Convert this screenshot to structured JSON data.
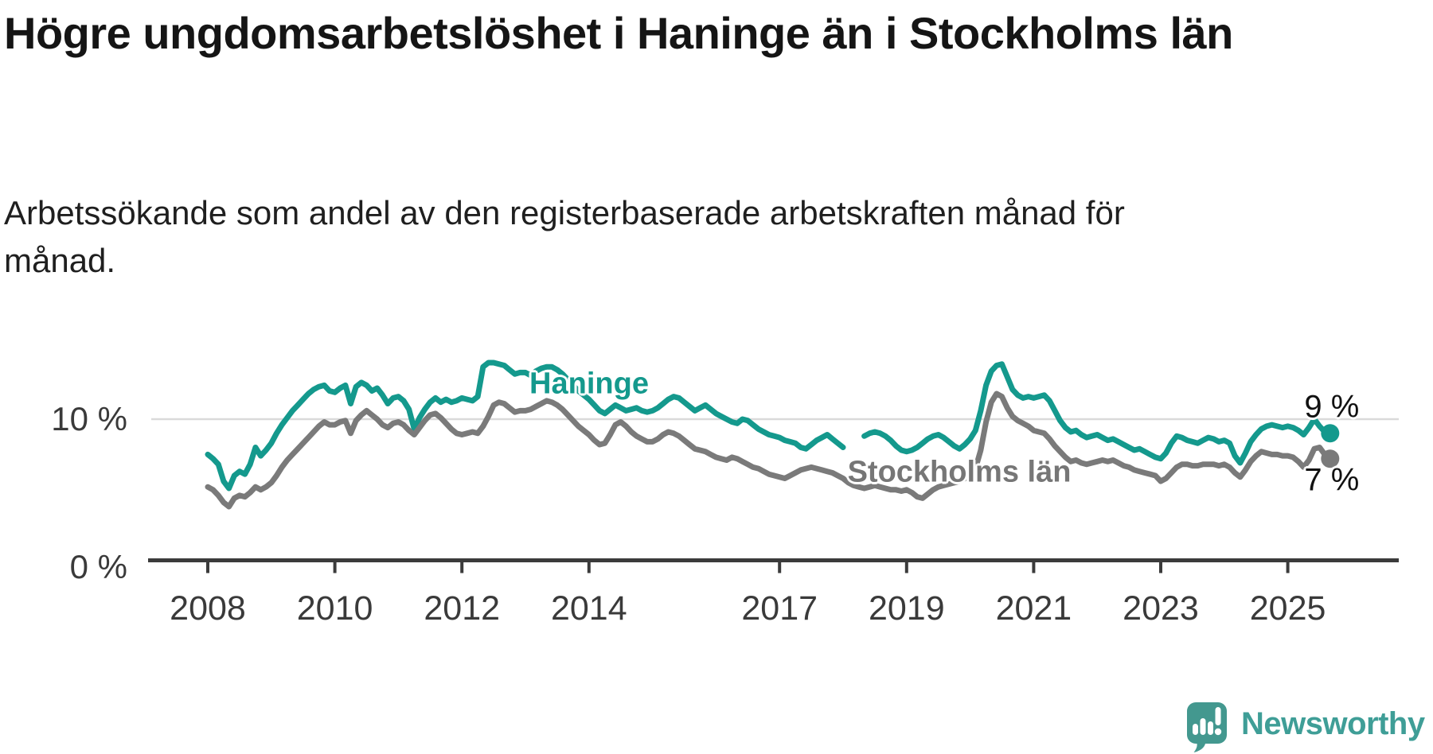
{
  "header": {
    "title": "Högre ungdomsarbetslöshet i Haninge än i Stockholms län",
    "subtitle": "Arbetssökande som andel av den registerbaserade arbetskraften månad för månad."
  },
  "footer": {
    "brand": "Newsworthy"
  },
  "chart_data": {
    "type": "line",
    "unit": "%",
    "frequency": "monthly",
    "start": "2008-01",
    "end": "2025-09",
    "grid": "horizontal-10-only",
    "legend_position": "inline-labels",
    "ylim": [
      0,
      14.5
    ],
    "colors": {
      "haninge": "#14998d",
      "stockholm": "#7a7a7a",
      "gridline": "#dadada",
      "axis": "#3b3b3b",
      "tick_label": "#3a3a3a",
      "end_label": "#111111",
      "logo": "#3f9e97"
    },
    "y_ticks": [
      {
        "label": "10 %",
        "value": 10,
        "gridline": true
      },
      {
        "label": "0 %",
        "value": 0,
        "gridline": false
      }
    ],
    "x_ticks": [
      {
        "label": "2008",
        "year": 2008
      },
      {
        "label": "2010",
        "year": 2010
      },
      {
        "label": "2012",
        "year": 2012
      },
      {
        "label": "2014",
        "year": 2014
      },
      {
        "label": "2017",
        "year": 2017
      },
      {
        "label": "2019",
        "year": 2019
      },
      {
        "label": "2021",
        "year": 2021
      },
      {
        "label": "2023",
        "year": 2023
      },
      {
        "label": "2025",
        "year": 2025
      }
    ],
    "series": [
      {
        "name": "Haninge",
        "color": "#14998d",
        "end_label": "9 %",
        "end_value": 9,
        "values": [
          7.5,
          7.2,
          6.8,
          5.6,
          5.1,
          6.0,
          6.3,
          6.1,
          6.8,
          8.0,
          7.4,
          7.8,
          8.3,
          9.0,
          9.6,
          10.1,
          10.6,
          11.0,
          11.4,
          11.8,
          12.1,
          12.3,
          12.4,
          12.0,
          11.9,
          12.2,
          12.4,
          11.1,
          12.3,
          12.6,
          12.4,
          12.0,
          12.2,
          11.7,
          11.1,
          11.5,
          11.6,
          11.3,
          10.7,
          9.3,
          10.1,
          10.7,
          11.2,
          11.5,
          11.2,
          11.4,
          11.2,
          11.3,
          11.5,
          11.4,
          11.3,
          11.6,
          13.7,
          14.0,
          14.0,
          13.9,
          13.8,
          13.5,
          13.2,
          13.3,
          13.3,
          13.1,
          13.4,
          13.6,
          13.7,
          13.7,
          13.5,
          13.2,
          12.8,
          12.4,
          12.0,
          11.7,
          11.4,
          11.0,
          10.6,
          10.4,
          10.7,
          11.0,
          10.8,
          10.6,
          10.7,
          10.8,
          10.6,
          10.5,
          10.6,
          10.8,
          11.1,
          11.4,
          11.6,
          11.5,
          11.2,
          10.9,
          10.6,
          10.8,
          11.0,
          10.7,
          10.4,
          10.2,
          10.0,
          9.8,
          9.7,
          10.0,
          9.9,
          9.6,
          9.3,
          9.1,
          8.9,
          8.8,
          8.7,
          8.5,
          8.4,
          8.3,
          8.0,
          7.9,
          8.2,
          8.5,
          8.7,
          8.9,
          8.6,
          8.3,
          8.0,
          null,
          null,
          null,
          8.8,
          9.0,
          9.1,
          9.0,
          8.8,
          8.5,
          8.1,
          7.8,
          7.7,
          7.8,
          8.0,
          8.3,
          8.6,
          8.8,
          8.9,
          8.7,
          8.4,
          8.1,
          7.9,
          8.2,
          8.6,
          9.2,
          10.6,
          12.4,
          13.4,
          13.8,
          13.9,
          13.0,
          12.1,
          11.7,
          11.5,
          11.6,
          11.5,
          11.6,
          11.7,
          11.3,
          10.6,
          9.9,
          9.4,
          9.1,
          9.2,
          8.9,
          8.7,
          8.8,
          8.9,
          8.7,
          8.5,
          8.6,
          8.4,
          8.2,
          8.0,
          7.8,
          7.9,
          7.7,
          7.5,
          7.3,
          7.2,
          7.6,
          8.3,
          8.8,
          8.7,
          8.5,
          8.4,
          8.3,
          8.5,
          8.7,
          8.6,
          8.4,
          8.5,
          8.3,
          7.4,
          6.9,
          7.6,
          8.4,
          8.9,
          9.3,
          9.5,
          9.6,
          9.5,
          9.4,
          9.5,
          9.4,
          9.2,
          8.9,
          9.4,
          10.0,
          9.5,
          9.1,
          9.0
        ]
      },
      {
        "name": "Stockholms län",
        "color": "#7a7a7a",
        "end_label": "7 %",
        "end_value": 7,
        "values": [
          5.2,
          5.0,
          4.6,
          4.1,
          3.8,
          4.4,
          4.6,
          4.5,
          4.8,
          5.2,
          5.0,
          5.2,
          5.5,
          6.0,
          6.6,
          7.1,
          7.5,
          7.9,
          8.3,
          8.7,
          9.1,
          9.5,
          9.8,
          9.6,
          9.6,
          9.8,
          9.9,
          9.0,
          9.9,
          10.3,
          10.6,
          10.3,
          10.0,
          9.6,
          9.4,
          9.7,
          9.8,
          9.6,
          9.2,
          8.9,
          9.4,
          9.9,
          10.3,
          10.4,
          10.1,
          9.7,
          9.3,
          9.0,
          8.9,
          9.0,
          9.1,
          9.0,
          9.5,
          10.2,
          11.0,
          11.2,
          11.1,
          10.8,
          10.5,
          10.6,
          10.6,
          10.7,
          10.9,
          11.1,
          11.3,
          11.2,
          11.0,
          10.7,
          10.3,
          9.9,
          9.5,
          9.2,
          8.9,
          8.5,
          8.2,
          8.3,
          8.9,
          9.6,
          9.8,
          9.5,
          9.1,
          8.8,
          8.6,
          8.4,
          8.4,
          8.6,
          8.9,
          9.1,
          9.0,
          8.8,
          8.5,
          8.2,
          7.9,
          7.8,
          7.7,
          7.5,
          7.3,
          7.2,
          7.1,
          7.3,
          7.2,
          7.0,
          6.8,
          6.6,
          6.5,
          6.3,
          6.1,
          6.0,
          5.9,
          5.8,
          6.0,
          6.2,
          6.4,
          6.5,
          6.6,
          6.5,
          6.4,
          6.3,
          6.2,
          6.0,
          5.8,
          5.5,
          5.3,
          5.2,
          5.1,
          5.2,
          5.3,
          5.2,
          5.1,
          5.0,
          5.0,
          4.9,
          5.0,
          4.8,
          4.5,
          4.4,
          4.7,
          5.0,
          5.2,
          5.3,
          5.4,
          5.5,
          5.6,
          5.8,
          6.1,
          6.5,
          7.8,
          9.8,
          11.2,
          11.8,
          11.6,
          10.8,
          10.2,
          9.9,
          9.7,
          9.5,
          9.2,
          9.1,
          9.0,
          8.6,
          8.1,
          7.7,
          7.3,
          7.0,
          7.1,
          6.9,
          6.8,
          6.9,
          7.0,
          7.1,
          7.0,
          7.1,
          6.9,
          6.7,
          6.6,
          6.4,
          6.3,
          6.2,
          6.1,
          6.0,
          5.6,
          5.8,
          6.2,
          6.6,
          6.8,
          6.8,
          6.7,
          6.7,
          6.8,
          6.8,
          6.8,
          6.7,
          6.8,
          6.6,
          6.2,
          5.9,
          6.4,
          7.0,
          7.4,
          7.7,
          7.6,
          7.5,
          7.5,
          7.4,
          7.4,
          7.3,
          7.0,
          6.6,
          7.1,
          7.9,
          8.0,
          7.5,
          7.2
        ]
      }
    ]
  }
}
